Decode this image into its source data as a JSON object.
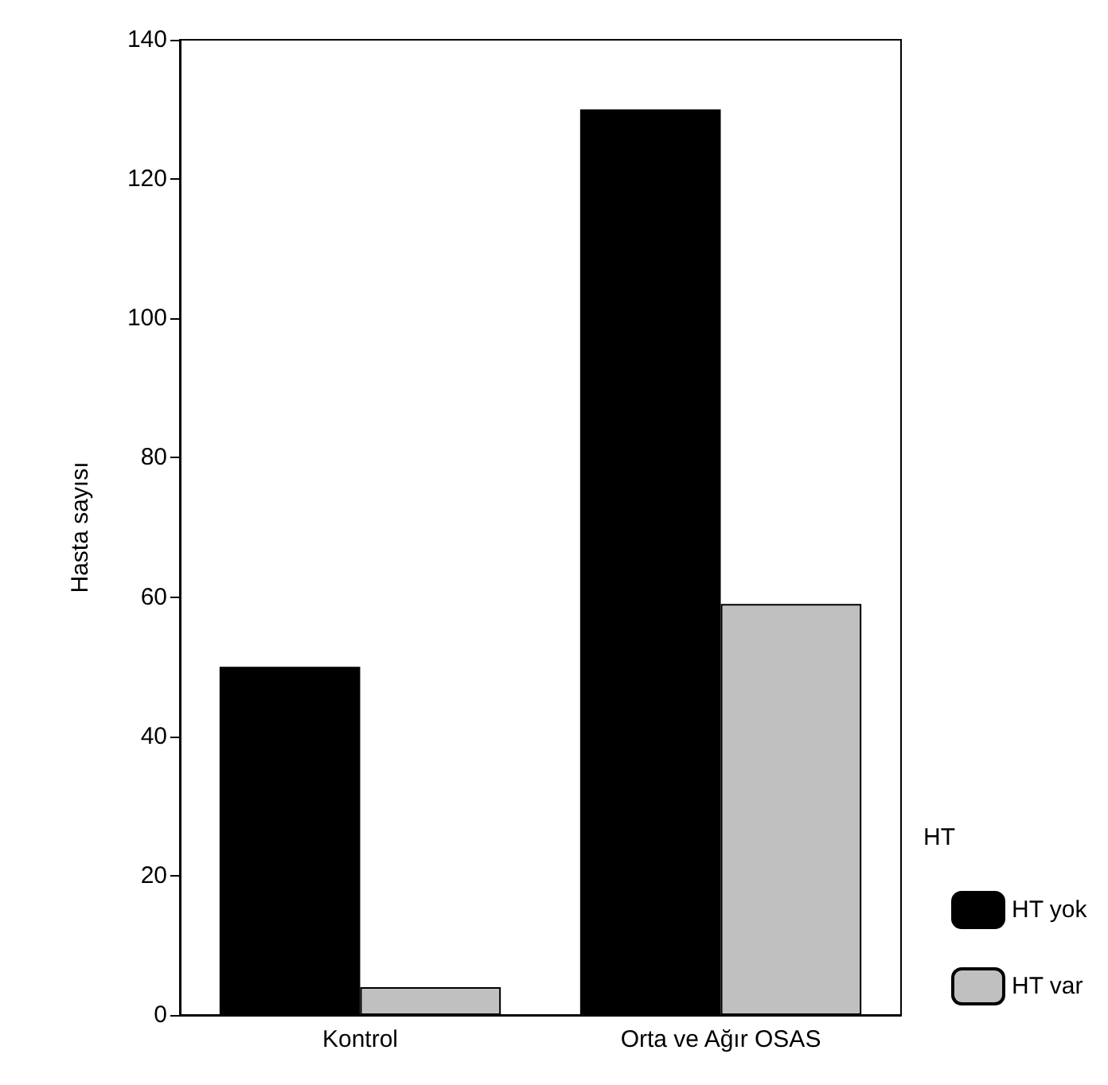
{
  "chart_data": {
    "type": "bar",
    "ylabel": "Hasta sayısı",
    "legend_title": "HT",
    "categories": [
      "Kontrol",
      "Orta ve Ağır OSAS"
    ],
    "series": [
      {
        "name": "HT yok",
        "color": "#000000",
        "values": [
          50,
          130
        ]
      },
      {
        "name": "HT var",
        "color": "#c0c0c0",
        "values": [
          4,
          59
        ]
      }
    ],
    "ylim": [
      0,
      140
    ],
    "yticks": [
      0,
      20,
      40,
      60,
      80,
      100,
      120,
      140
    ],
    "grid": false,
    "legend": "right"
  }
}
